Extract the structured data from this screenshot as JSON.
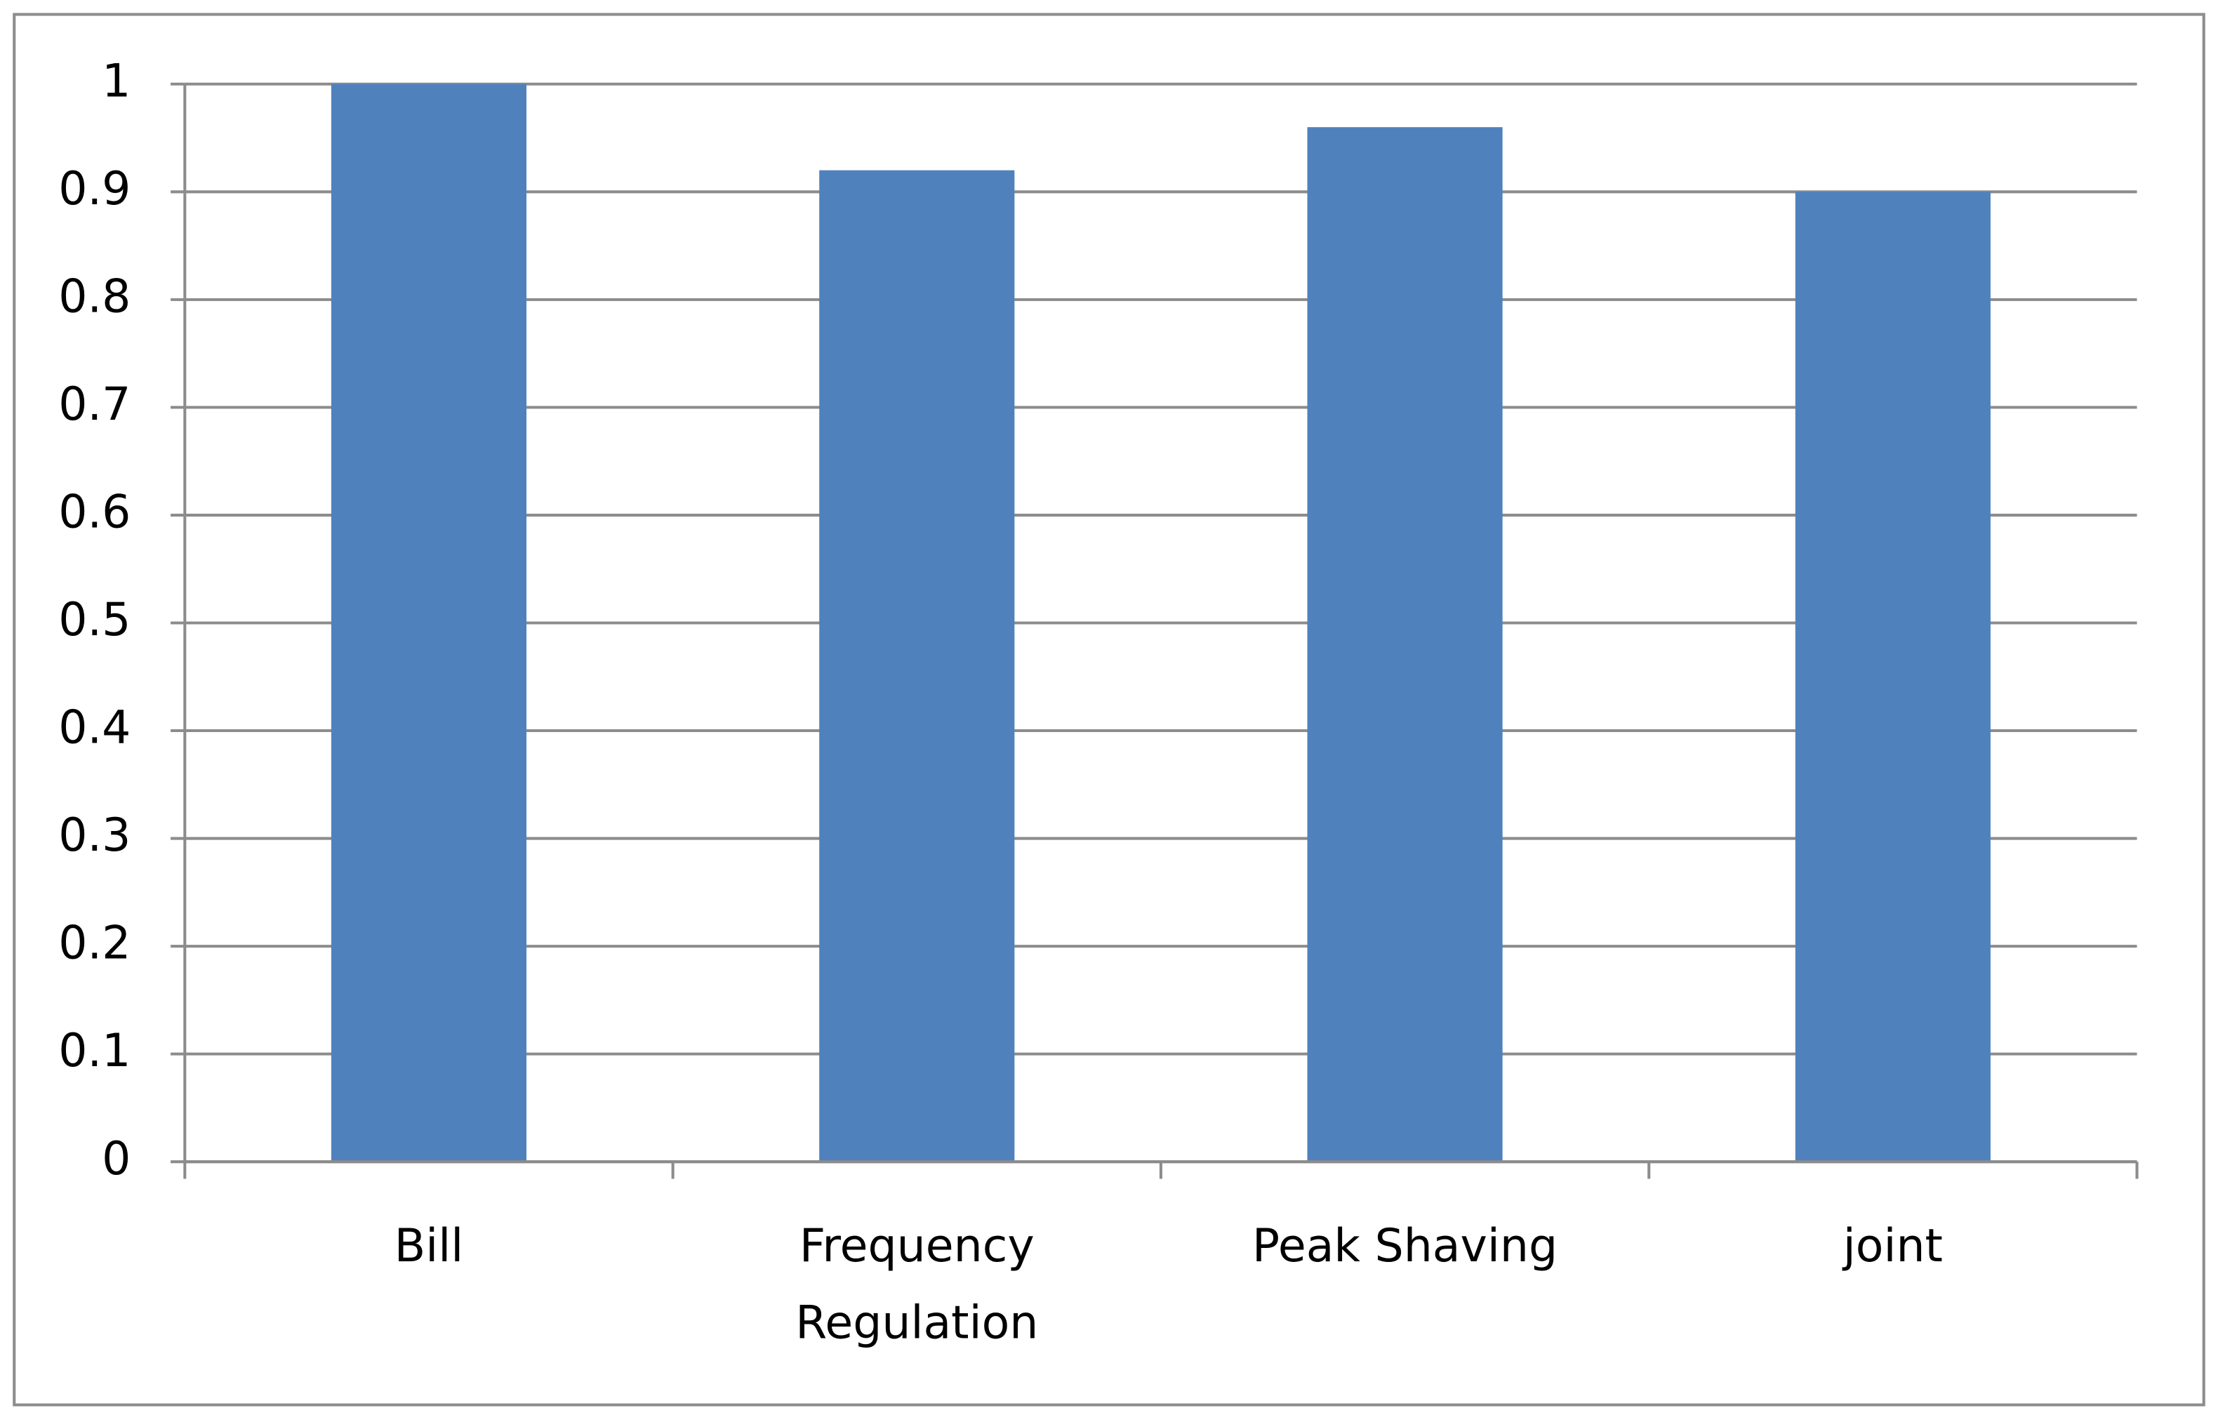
{
  "chart_data": {
    "type": "bar",
    "categories": [
      "Bill",
      "Frequency Regulation",
      "Peak Shaving",
      "joint"
    ],
    "values": [
      1,
      0.92,
      0.96,
      0.9
    ],
    "color": "#4f81bd",
    "ylim": [
      0,
      1
    ],
    "yticks": [
      0,
      0.1,
      0.2,
      0.3,
      0.4,
      0.5,
      0.6,
      0.7,
      0.8,
      0.9,
      1
    ],
    "grid": true
  }
}
